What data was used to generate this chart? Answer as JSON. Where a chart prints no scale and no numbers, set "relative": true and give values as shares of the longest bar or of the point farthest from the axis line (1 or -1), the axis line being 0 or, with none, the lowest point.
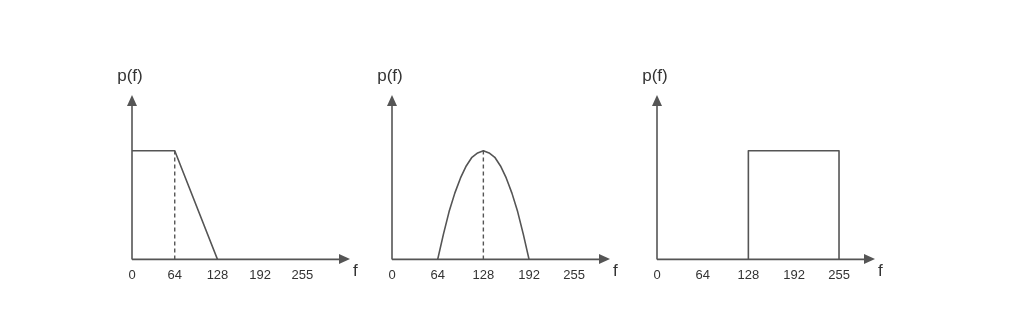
{
  "chart_data": [
    {
      "type": "line",
      "relative": true,
      "xlabel": "f",
      "ylabel": "p(f)",
      "xlim": [
        0,
        310
      ],
      "xticks": [
        0,
        64,
        128,
        192,
        255
      ],
      "grid": false,
      "legend": false,
      "marker": "none",
      "series": [
        {
          "color": "#555555",
          "x": [
            0,
            64,
            128
          ],
          "values": [
            1,
            1,
            0
          ]
        }
      ],
      "ref_lines": [
        {
          "axis": "x",
          "value": 64,
          "color": "#555555",
          "line_style": "dashed"
        }
      ]
    },
    {
      "type": "line",
      "relative": true,
      "xlabel": "f",
      "ylabel": "p(f)",
      "xlim": [
        0,
        290
      ],
      "xticks": [
        0,
        64,
        128,
        192,
        255
      ],
      "grid": false,
      "legend": false,
      "marker": "none",
      "series": [
        {
          "color": "#555555",
          "x": [
            64,
            72,
            80,
            88,
            96,
            104,
            112,
            120,
            128,
            136,
            144,
            152,
            160,
            168,
            176,
            184,
            192
          ],
          "values": [
            0,
            0.23,
            0.44,
            0.61,
            0.75,
            0.86,
            0.94,
            0.98,
            1,
            0.98,
            0.94,
            0.86,
            0.75,
            0.61,
            0.44,
            0.23,
            0
          ]
        }
      ],
      "ref_lines": [
        {
          "axis": "x",
          "value": 128,
          "color": "#555555",
          "line_style": "dashed"
        }
      ]
    },
    {
      "type": "line",
      "relative": true,
      "xlabel": "f",
      "ylabel": "p(f)",
      "xlim": [
        0,
        290
      ],
      "xticks": [
        0,
        64,
        128,
        192,
        255
      ],
      "grid": false,
      "legend": false,
      "marker": "none",
      "series": [
        {
          "color": "#555555",
          "x": [
            128,
            128,
            255,
            255
          ],
          "values": [
            0,
            1,
            1,
            0
          ]
        }
      ]
    }
  ]
}
